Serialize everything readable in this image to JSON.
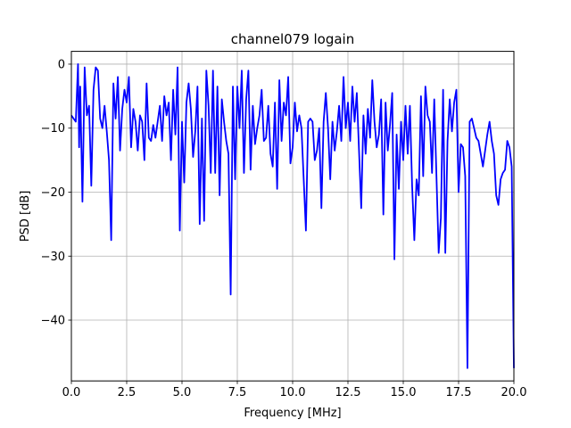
{
  "chart_data": {
    "type": "line",
    "title": "channel079 logain",
    "xlabel": "Frequency [MHz]",
    "ylabel": "PSD [dB]",
    "xlim": [
      0,
      20
    ],
    "ylim": [
      -49.5,
      2
    ],
    "grid": true,
    "x_ticks": [
      0,
      2.5,
      5,
      7.5,
      10,
      12.5,
      15,
      17.5,
      20
    ],
    "x_tick_labels": [
      "0.0",
      "2.5",
      "5.0",
      "7.5",
      "10.0",
      "12.5",
      "15.0",
      "17.5",
      "20.0"
    ],
    "y_ticks": [
      0,
      -10,
      -20,
      -30,
      -40
    ],
    "y_tick_labels": [
      "0",
      "−10",
      "−20",
      "−30",
      "−40"
    ],
    "series": [
      {
        "color": "#0000ff",
        "x": [
          0.0,
          0.1,
          0.2,
          0.3,
          0.35,
          0.4,
          0.5,
          0.6,
          0.7,
          0.8,
          0.9,
          1.0,
          1.1,
          1.2,
          1.3,
          1.4,
          1.5,
          1.6,
          1.7,
          1.8,
          1.9,
          2.0,
          2.1,
          2.2,
          2.3,
          2.4,
          2.5,
          2.6,
          2.7,
          2.8,
          2.9,
          3.0,
          3.1,
          3.2,
          3.3,
          3.4,
          3.5,
          3.6,
          3.7,
          3.8,
          3.9,
          4.0,
          4.1,
          4.2,
          4.3,
          4.4,
          4.5,
          4.6,
          4.7,
          4.8,
          4.9,
          5.0,
          5.1,
          5.2,
          5.3,
          5.4,
          5.5,
          5.6,
          5.7,
          5.8,
          5.9,
          6.0,
          6.1,
          6.2,
          6.3,
          6.4,
          6.5,
          6.6,
          6.7,
          6.8,
          6.9,
          7.0,
          7.1,
          7.2,
          7.3,
          7.4,
          7.5,
          7.6,
          7.7,
          7.8,
          7.9,
          8.0,
          8.1,
          8.2,
          8.3,
          8.4,
          8.5,
          8.6,
          8.7,
          8.8,
          8.9,
          9.0,
          9.1,
          9.2,
          9.3,
          9.4,
          9.5,
          9.6,
          9.7,
          9.8,
          9.9,
          10.0,
          10.1,
          10.2,
          10.3,
          10.4,
          10.5,
          10.6,
          10.7,
          10.8,
          10.9,
          11.0,
          11.1,
          11.2,
          11.3,
          11.4,
          11.5,
          11.6,
          11.7,
          11.8,
          11.9,
          12.0,
          12.1,
          12.2,
          12.3,
          12.4,
          12.5,
          12.6,
          12.7,
          12.8,
          12.9,
          13.0,
          13.1,
          13.2,
          13.3,
          13.4,
          13.5,
          13.6,
          13.7,
          13.8,
          13.9,
          14.0,
          14.1,
          14.2,
          14.3,
          14.4,
          14.5,
          14.6,
          14.7,
          14.8,
          14.9,
          15.0,
          15.1,
          15.2,
          15.3,
          15.4,
          15.5,
          15.6,
          15.7,
          15.8,
          15.9,
          16.0,
          16.1,
          16.2,
          16.3,
          16.4,
          16.5,
          16.6,
          16.7,
          16.8,
          16.9,
          17.0,
          17.1,
          17.2,
          17.3,
          17.4,
          17.5,
          17.6,
          17.7,
          17.8,
          17.9,
          18.0,
          18.1,
          18.2,
          18.3,
          18.4,
          18.5,
          18.6,
          18.7,
          18.8,
          18.9,
          19.0,
          19.1,
          19.2,
          19.3,
          19.4,
          19.5,
          19.6,
          19.7,
          19.8,
          19.9,
          20.0
        ],
        "y": [
          -8,
          -8.5,
          -9,
          0,
          -13,
          -3.5,
          -21.5,
          -0.5,
          -8,
          -6.5,
          -19,
          -4,
          -0.5,
          -1,
          -8.5,
          -10,
          -6.5,
          -10.5,
          -15,
          -27.5,
          -3,
          -8.5,
          -2,
          -13.5,
          -7,
          -4,
          -6,
          -2,
          -13,
          -7,
          -9,
          -13.5,
          -8,
          -9,
          -15,
          -3,
          -11.5,
          -12,
          -9.5,
          -11.5,
          -9,
          -6.5,
          -12,
          -5,
          -8,
          -6,
          -15,
          -4,
          -11,
          -0.5,
          -26,
          -9,
          -18.5,
          -6,
          -3,
          -7,
          -14.5,
          -10.5,
          -3.5,
          -25,
          -8.5,
          -24.5,
          -1,
          -6.5,
          -17,
          -1,
          -17,
          -3.5,
          -20.5,
          -5.5,
          -9,
          -12,
          -14,
          -36,
          -3.5,
          -18,
          -3.5,
          -10,
          -1,
          -17,
          -5.5,
          -1,
          -16.5,
          -6.5,
          -12.5,
          -10,
          -8,
          -4,
          -12,
          -11.5,
          -6.5,
          -14,
          -16,
          -6,
          -19.5,
          -2.5,
          -12,
          -6,
          -8,
          -2,
          -15.5,
          -13,
          -6,
          -10.5,
          -8,
          -10,
          -18,
          -26,
          -9,
          -8.5,
          -9,
          -15,
          -13.5,
          -10,
          -22.5,
          -9,
          -4.5,
          -10,
          -18,
          -9,
          -13.5,
          -10.5,
          -6.5,
          -12,
          -2,
          -10,
          -6,
          -12,
          -3.5,
          -9,
          -4.5,
          -13.5,
          -22.5,
          -8,
          -14,
          -7,
          -11.5,
          -2.5,
          -9,
          -13,
          -11,
          -5.5,
          -23.5,
          -6,
          -13.5,
          -9.5,
          -4.5,
          -30.5,
          -11,
          -19.5,
          -9,
          -15,
          -6.5,
          -14,
          -6.5,
          -19,
          -27.5,
          -18,
          -20.5,
          -5,
          -17.5,
          -3.5,
          -8,
          -9,
          -17,
          -5.5,
          -17.5,
          -29.5,
          -24,
          -4,
          -29.5,
          -12,
          -5.5,
          -10.5,
          -6,
          -4,
          -20,
          -12.5,
          -13,
          -17.5,
          -47.5,
          -9,
          -8.5,
          -10,
          -11.5,
          -12,
          -14,
          -16,
          -13.5,
          -11,
          -9,
          -12,
          -14,
          -20.5,
          -22,
          -18,
          -17,
          -16.5,
          -12,
          -13,
          -16,
          -47.5
        ]
      }
    ]
  }
}
